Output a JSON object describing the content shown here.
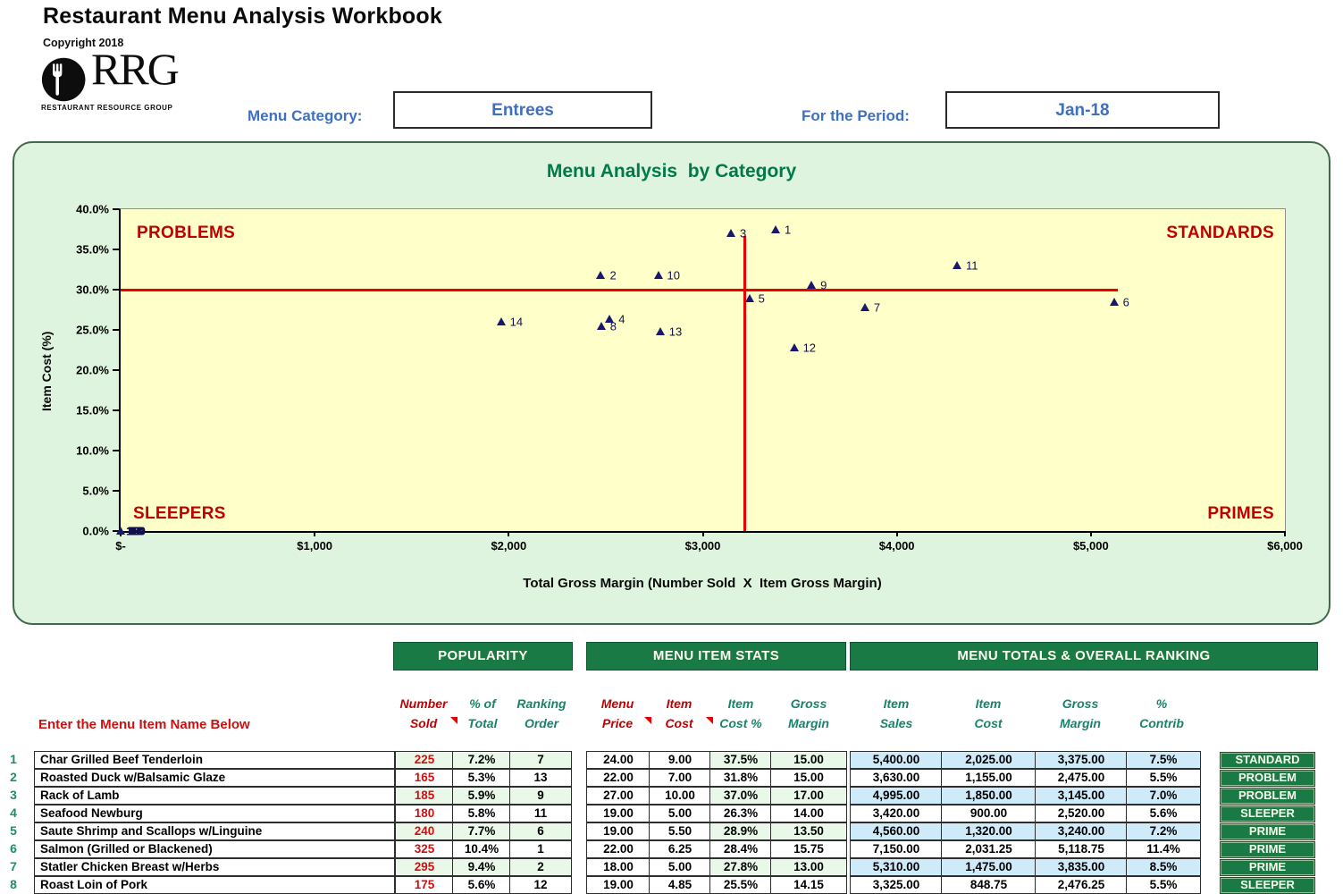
{
  "header": {
    "title": "Restaurant Menu Analysis Workbook",
    "copyright": "Copyright 2018",
    "logo_text": "RRG",
    "logo_subtext": "RESTAURANT RESOURCE GROUP",
    "menu_category_label": "Menu Category:",
    "menu_category_value": "Entrees",
    "period_label": "For the Period:",
    "period_value": "Jan-18"
  },
  "chart_data": {
    "type": "scatter",
    "title": "Menu Analysis  by Category",
    "xlabel": "Total Gross Margin (Number Sold  X  Item Gross Margin)",
    "ylabel": "Item Cost (%)",
    "xlim": [
      0,
      6000
    ],
    "ylim": [
      0,
      40
    ],
    "x_ticks": [
      "$-",
      "$1,000",
      "$2,000",
      "$3,000",
      "$4,000",
      "$5,000",
      "$6,000"
    ],
    "y_ticks": [
      "0.0%",
      "5.0%",
      "10.0%",
      "15.0%",
      "20.0%",
      "25.0%",
      "30.0%",
      "35.0%",
      "40.0%"
    ],
    "grid": false,
    "legend": "none",
    "quadrants": {
      "top_left": "PROBLEMS",
      "top_right": "STANDARDS",
      "bottom_left": "SLEEPERS",
      "bottom_right": "PRIMES"
    },
    "crosshair": {
      "y_value": 30.0,
      "x_value": 3215,
      "h_line_x_end": 5140,
      "v_line_y_top": 36.7,
      "color": "#ee0000"
    },
    "marker_color": "#18186e",
    "points": [
      {
        "label": "1",
        "x": 3375,
        "y": 37.5
      },
      {
        "label": "2",
        "x": 2475,
        "y": 31.8
      },
      {
        "label": "3",
        "x": 3145,
        "y": 37.0
      },
      {
        "label": "4",
        "x": 2520,
        "y": 26.3
      },
      {
        "label": "5",
        "x": 3240,
        "y": 28.9
      },
      {
        "label": "6",
        "x": 5118.75,
        "y": 28.4
      },
      {
        "label": "7",
        "x": 3835,
        "y": 27.8
      },
      {
        "label": "8",
        "x": 2476.25,
        "y": 25.5
      },
      {
        "label": "9",
        "x": 3560,
        "y": 30.6
      },
      {
        "label": "10",
        "x": 2770,
        "y": 31.8
      },
      {
        "label": "11",
        "x": 4310,
        "y": 33.0
      },
      {
        "label": "12",
        "x": 3470,
        "y": 22.8
      },
      {
        "label": "13",
        "x": 2780,
        "y": 24.8
      },
      {
        "label": "14",
        "x": 1960,
        "y": 26.0
      }
    ],
    "origin_cluster": {
      "x": 0,
      "y": 0,
      "labels": [
        "15",
        "16",
        "17",
        "18",
        "19",
        "20"
      ]
    }
  },
  "table": {
    "banners": {
      "popularity": "POPULARITY",
      "stats": "MENU ITEM STATS",
      "totals": "MENU TOTALS & OVERALL RANKING"
    },
    "name_prompt": "Enter the Menu Item Name Below",
    "columns": [
      {
        "line1": "Number",
        "line2": "Sold",
        "color": "red",
        "note": true
      },
      {
        "line1": "% of",
        "line2": "Total",
        "color": "teal",
        "note": false
      },
      {
        "line1": "Ranking",
        "line2": "Order",
        "color": "teal",
        "note": false
      },
      {
        "line1": "Menu",
        "line2": "Price",
        "color": "red",
        "note": true
      },
      {
        "line1": "Item",
        "line2": "Cost",
        "color": "red",
        "note": true
      },
      {
        "line1": "Item",
        "line2": "Cost %",
        "color": "teal",
        "note": false
      },
      {
        "line1": "Gross",
        "line2": "Margin",
        "color": "teal",
        "note": false
      },
      {
        "line1": "Item",
        "line2": "Sales",
        "color": "teal",
        "note": false
      },
      {
        "line1": "Item",
        "line2": "Cost",
        "color": "teal",
        "note": false
      },
      {
        "line1": "Gross",
        "line2": "Margin",
        "color": "teal",
        "note": false
      },
      {
        "line1": "%",
        "line2": "Contrib",
        "color": "teal",
        "note": false
      }
    ],
    "rows": [
      {
        "num": "1",
        "name": "Char Grilled Beef Tenderloin",
        "sold": "225",
        "pct_total": "7.2%",
        "rank": "7",
        "price": "24.00",
        "cost": "9.00",
        "cost_pct": "37.5%",
        "margin": "15.00",
        "sales": "5,400.00",
        "item_cost": "2,025.00",
        "gross_margin": "3,375.00",
        "contrib": "7.5%",
        "ranking": "STANDARD"
      },
      {
        "num": "2",
        "name": "Roasted Duck w/Balsamic Glaze",
        "sold": "165",
        "pct_total": "5.3%",
        "rank": "13",
        "price": "22.00",
        "cost": "7.00",
        "cost_pct": "31.8%",
        "margin": "15.00",
        "sales": "3,630.00",
        "item_cost": "1,155.00",
        "gross_margin": "2,475.00",
        "contrib": "5.5%",
        "ranking": "PROBLEM"
      },
      {
        "num": "3",
        "name": "Rack of Lamb",
        "sold": "185",
        "pct_total": "5.9%",
        "rank": "9",
        "price": "27.00",
        "cost": "10.00",
        "cost_pct": "37.0%",
        "margin": "17.00",
        "sales": "4,995.00",
        "item_cost": "1,850.00",
        "gross_margin": "3,145.00",
        "contrib": "7.0%",
        "ranking": "PROBLEM"
      },
      {
        "num": "4",
        "name": "Seafood Newburg",
        "sold": "180",
        "pct_total": "5.8%",
        "rank": "11",
        "price": "19.00",
        "cost": "5.00",
        "cost_pct": "26.3%",
        "margin": "14.00",
        "sales": "3,420.00",
        "item_cost": "900.00",
        "gross_margin": "2,520.00",
        "contrib": "5.6%",
        "ranking": "SLEEPER"
      },
      {
        "num": "5",
        "name": "Saute Shrimp and Scallops w/Linguine",
        "sold": "240",
        "pct_total": "7.7%",
        "rank": "6",
        "price": "19.00",
        "cost": "5.50",
        "cost_pct": "28.9%",
        "margin": "13.50",
        "sales": "4,560.00",
        "item_cost": "1,320.00",
        "gross_margin": "3,240.00",
        "contrib": "7.2%",
        "ranking": "PRIME"
      },
      {
        "num": "6",
        "name": "Salmon (Grilled or Blackened)",
        "sold": "325",
        "pct_total": "10.4%",
        "rank": "1",
        "price": "22.00",
        "cost": "6.25",
        "cost_pct": "28.4%",
        "margin": "15.75",
        "sales": "7,150.00",
        "item_cost": "2,031.25",
        "gross_margin": "5,118.75",
        "contrib": "11.4%",
        "ranking": "PRIME"
      },
      {
        "num": "7",
        "name": "Statler Chicken Breast w/Herbs",
        "sold": "295",
        "pct_total": "9.4%",
        "rank": "2",
        "price": "18.00",
        "cost": "5.00",
        "cost_pct": "27.8%",
        "margin": "13.00",
        "sales": "5,310.00",
        "item_cost": "1,475.00",
        "gross_margin": "3,835.00",
        "contrib": "8.5%",
        "ranking": "PRIME"
      },
      {
        "num": "8",
        "name": "Roast Loin of Pork",
        "sold": "175",
        "pct_total": "5.6%",
        "rank": "12",
        "price": "19.00",
        "cost": "4.85",
        "cost_pct": "25.5%",
        "margin": "14.15",
        "sales": "3,325.00",
        "item_cost": "848.75",
        "gross_margin": "2,476.25",
        "contrib": "5.5%",
        "ranking": "SLEEPER"
      }
    ]
  }
}
